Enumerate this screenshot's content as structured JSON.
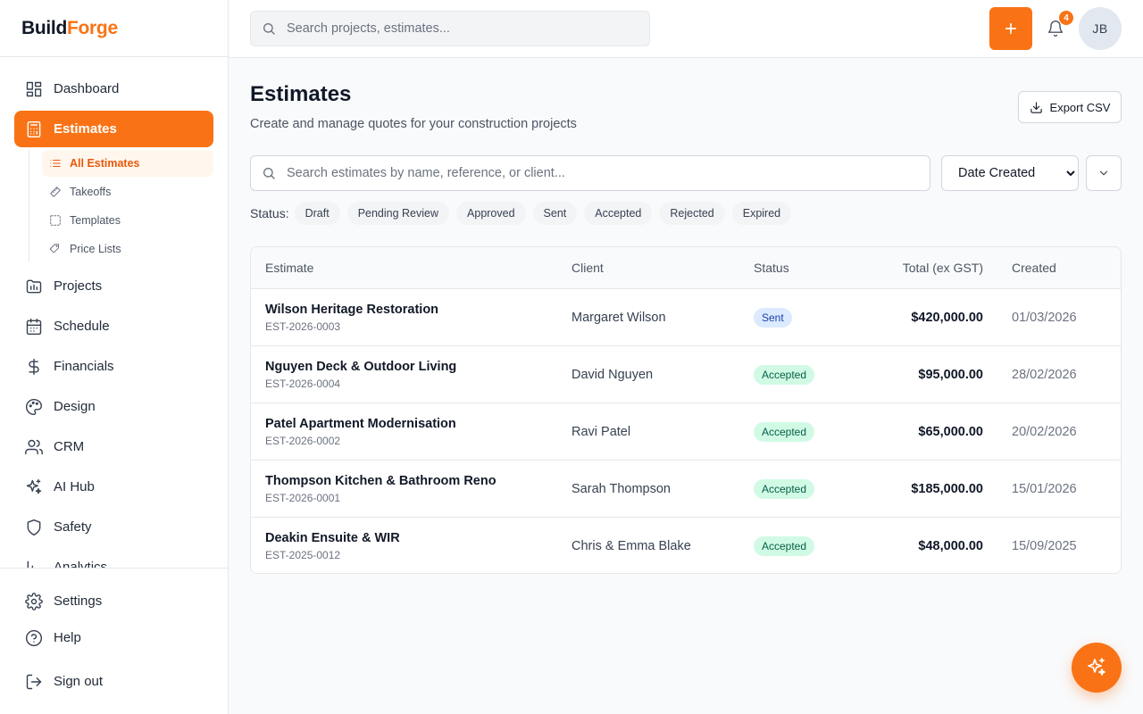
{
  "brand": {
    "part1": "Build",
    "part2": "Forge",
    "accent": "#f97316"
  },
  "topbar": {
    "search_placeholder": "Search projects, estimates...",
    "notification_count": "4",
    "avatar_initials": "JB"
  },
  "sidebar": {
    "items": [
      {
        "label": "Dashboard",
        "icon": "dashboard-icon"
      },
      {
        "label": "Estimates",
        "icon": "calculator-icon"
      },
      {
        "label": "Projects",
        "icon": "folder-chart-icon"
      },
      {
        "label": "Schedule",
        "icon": "calendar-icon"
      },
      {
        "label": "Financials",
        "icon": "dollar-icon"
      },
      {
        "label": "Design",
        "icon": "palette-icon"
      },
      {
        "label": "CRM",
        "icon": "users-icon"
      },
      {
        "label": "AI Hub",
        "icon": "sparkles-icon"
      },
      {
        "label": "Safety",
        "icon": "shield-icon"
      },
      {
        "label": "Analytics",
        "icon": "bar-chart-icon"
      }
    ],
    "sub_items": [
      {
        "label": "All Estimates",
        "icon": "list-icon"
      },
      {
        "label": "Takeoffs",
        "icon": "ruler-icon"
      },
      {
        "label": "Templates",
        "icon": "template-icon"
      },
      {
        "label": "Price Lists",
        "icon": "tags-icon"
      }
    ],
    "bottom": [
      {
        "label": "Settings",
        "icon": "gear-icon"
      },
      {
        "label": "Help",
        "icon": "help-circle-icon"
      },
      {
        "label": "Sign out",
        "icon": "logout-icon"
      }
    ]
  },
  "page": {
    "title": "Estimates",
    "subtitle": "Create and manage quotes for your construction projects",
    "export_label": "Export CSV",
    "search_placeholder": "Search estimates by name, reference, or client...",
    "sort_selected": "Date Created",
    "status_label": "Status:",
    "status_filters": [
      "Draft",
      "Pending Review",
      "Approved",
      "Sent",
      "Accepted",
      "Rejected",
      "Expired"
    ]
  },
  "table": {
    "headers": {
      "estimate": "Estimate",
      "client": "Client",
      "status": "Status",
      "total": "Total (ex GST)",
      "created": "Created"
    },
    "rows": [
      {
        "name": "Wilson Heritage Restoration",
        "ref": "EST-2026-0003",
        "client": "Margaret Wilson",
        "status": "Sent",
        "total": "$420,000.00",
        "created": "01/03/2026"
      },
      {
        "name": "Nguyen Deck & Outdoor Living",
        "ref": "EST-2026-0004",
        "client": "David Nguyen",
        "status": "Accepted",
        "total": "$95,000.00",
        "created": "28/02/2026"
      },
      {
        "name": "Patel Apartment Modernisation",
        "ref": "EST-2026-0002",
        "client": "Ravi Patel",
        "status": "Accepted",
        "total": "$65,000.00",
        "created": "20/02/2026"
      },
      {
        "name": "Thompson Kitchen & Bathroom Reno",
        "ref": "EST-2026-0001",
        "client": "Sarah Thompson",
        "status": "Accepted",
        "total": "$185,000.00",
        "created": "15/01/2026"
      },
      {
        "name": "Deakin Ensuite & WIR",
        "ref": "EST-2025-0012",
        "client": "Chris & Emma Blake",
        "status": "Accepted",
        "total": "$48,000.00",
        "created": "15/09/2025"
      }
    ]
  }
}
